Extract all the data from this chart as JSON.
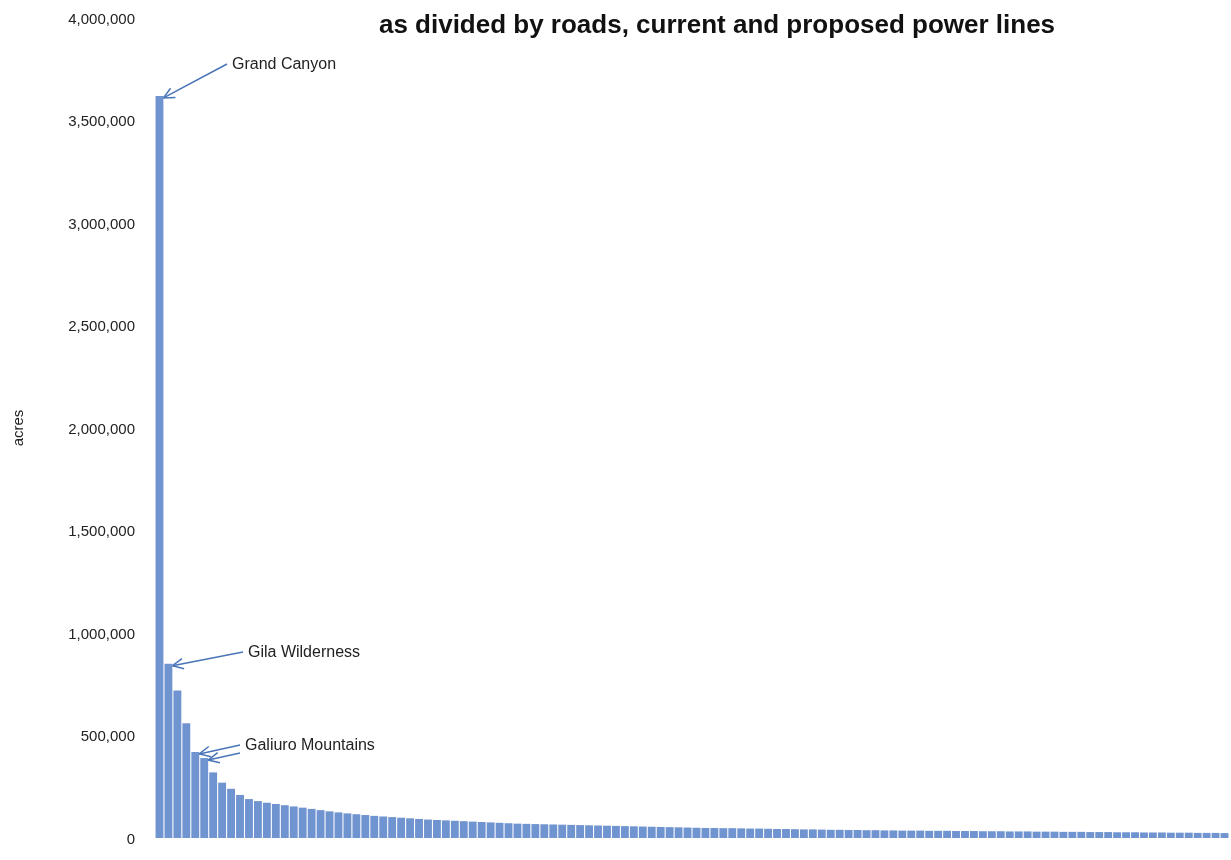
{
  "chart_data": {
    "type": "bar",
    "title": "as divided by roads, current and proposed power lines",
    "ylabel": "acres",
    "categories": [
      null,
      null,
      null,
      null,
      null,
      null,
      null,
      null,
      null,
      null,
      null,
      null,
      null,
      null,
      null,
      null,
      null,
      null,
      null,
      null,
      null,
      null,
      null,
      null,
      null,
      null,
      null,
      null,
      null,
      null,
      null,
      null,
      null,
      null,
      null,
      null,
      null,
      null,
      null,
      null,
      null,
      null,
      null,
      null,
      null,
      null,
      null,
      null,
      null,
      null,
      null,
      null,
      null,
      null,
      null,
      null,
      null,
      null,
      null,
      null,
      null,
      null,
      null,
      null,
      null,
      null,
      null,
      null,
      null,
      null,
      null,
      null,
      null,
      null,
      null,
      null,
      null,
      null,
      null,
      null,
      null,
      null,
      null,
      null,
      null,
      null,
      null,
      null,
      null,
      null,
      null,
      null,
      null,
      null,
      null,
      null,
      null,
      null,
      null,
      null,
      null,
      null,
      null,
      null,
      null,
      null,
      null,
      null,
      null,
      null,
      null,
      null,
      null,
      null,
      null,
      null,
      null,
      null,
      null,
      null
    ],
    "values": [
      3620000,
      850000,
      720000,
      560000,
      420000,
      390000,
      320000,
      270000,
      240000,
      210000,
      190000,
      180000,
      172000,
      166000,
      160000,
      154000,
      148000,
      142000,
      136000,
      130000,
      125000,
      120000,
      116000,
      112000,
      108000,
      105000,
      102000,
      99000,
      96000,
      93000,
      90000,
      88000,
      86000,
      84000,
      82000,
      80000,
      78000,
      76000,
      74000,
      72000,
      70000,
      69000,
      68000,
      67000,
      66000,
      65000,
      64000,
      63000,
      62000,
      61000,
      60000,
      59000,
      58000,
      57000,
      56000,
      55000,
      54000,
      53000,
      52000,
      51000,
      50000,
      49000,
      49000,
      48000,
      48000,
      47000,
      46000,
      46000,
      45000,
      44000,
      44000,
      43000,
      42000,
      42000,
      41000,
      40000,
      40000,
      39000,
      39000,
      38000,
      38000,
      37000,
      37000,
      36000,
      36000,
      36000,
      35000,
      35000,
      35000,
      34000,
      34000,
      34000,
      33000,
      33000,
      33000,
      32000,
      32000,
      32000,
      31000,
      31000,
      31000,
      30000,
      30000,
      30000,
      29000,
      29000,
      29000,
      28000,
      28000,
      28000,
      27000,
      27000,
      27000,
      26000,
      26000,
      26000,
      25000,
      25000,
      25000,
      24000
    ],
    "color": "#7094cf",
    "ylim": [
      0,
      4000000
    ],
    "yticks": [
      0,
      {
        "value": 500000,
        "label": "500,000"
      },
      {
        "value": 1000000,
        "label": "1,000,000"
      },
      {
        "value": 1500000,
        "label": "1,500,000"
      },
      {
        "value": 2000000,
        "label": "2,000,000"
      },
      {
        "value": 2500000,
        "label": "2,500,000"
      },
      {
        "value": 3000000,
        "label": "3,000,000"
      },
      {
        "value": 3500000,
        "label": "3,500,000"
      },
      {
        "value": 4000000,
        "label": "4,000,000"
      }
    ],
    "grid": false,
    "annotations": [
      "Grand Canyon",
      "Gila Wilderness",
      "Galiuro Mountains"
    ]
  }
}
